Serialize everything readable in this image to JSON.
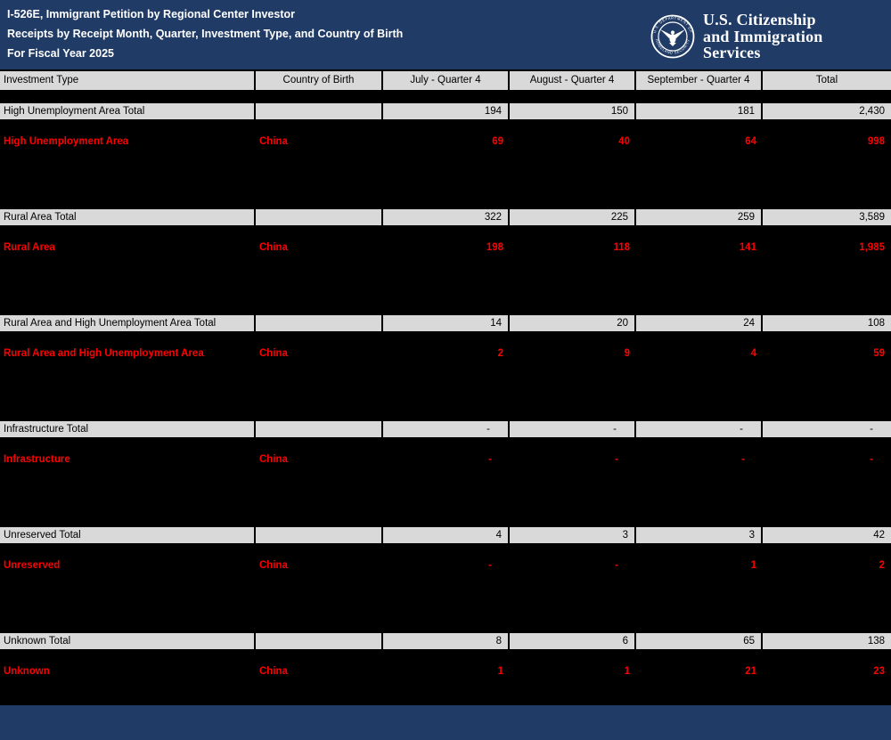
{
  "header": {
    "title_line1": "I-526E, Immigrant Petition by Regional Center Investor",
    "title_line2": "Receipts by Receipt Month, Quarter, Investment Type, and Country of Birth",
    "title_line3": "For Fiscal Year 2025",
    "seal_text_top": "U.S. DEPARTMENT OF",
    "seal_text_bottom": "HOMELAND SECURITY",
    "wordmark_line1": "U.S. Citizenship",
    "wordmark_line2": "and Immigration",
    "wordmark_line3": "Services"
  },
  "colors": {
    "banner_navy": "#1f3b66",
    "cell_gray": "#d9d9d9",
    "highlight_red": "#ff0000",
    "background_black": "#000000",
    "text_white": "#ffffff"
  },
  "table": {
    "columns": [
      "Investment Type",
      "Country of Birth",
      "July - Quarter 4",
      "August - Quarter 4",
      "September - Quarter 4",
      "Total"
    ],
    "sections": [
      {
        "total": {
          "label": "High Unemployment Area Total",
          "country": "",
          "values": [
            "194",
            "150",
            "181",
            "2,430"
          ]
        },
        "china": {
          "label": "High Unemployment Area",
          "country": "China",
          "values": [
            "69",
            "40",
            "64",
            "998"
          ]
        }
      },
      {
        "total": {
          "label": "Rural Area Total",
          "country": "",
          "values": [
            "322",
            "225",
            "259",
            "3,589"
          ]
        },
        "china": {
          "label": "Rural Area",
          "country": "China",
          "values": [
            "198",
            "118",
            "141",
            "1,985"
          ]
        }
      },
      {
        "total": {
          "label": "Rural Area and High Unemployment Area Total",
          "country": "",
          "values": [
            "14",
            "20",
            "24",
            "108"
          ]
        },
        "china": {
          "label": "Rural Area and High Unemployment Area",
          "country": "China",
          "values": [
            "2",
            "9",
            "4",
            "59"
          ]
        }
      },
      {
        "total": {
          "label": "Infrastructure Total",
          "country": "",
          "values": [
            "-",
            "-",
            "-",
            "-"
          ]
        },
        "china": {
          "label": "Infrastructure",
          "country": "China",
          "values": [
            "-",
            "-",
            "-",
            "-"
          ]
        }
      },
      {
        "total": {
          "label": "Unreserved Total",
          "country": "",
          "values": [
            "4",
            "3",
            "3",
            "42"
          ]
        },
        "china": {
          "label": "Unreserved",
          "country": "China",
          "values": [
            "-",
            "-",
            "1",
            "2"
          ]
        }
      },
      {
        "total": {
          "label": "Unknown Total",
          "country": "",
          "values": [
            "8",
            "6",
            "65",
            "138"
          ]
        },
        "china": {
          "label": "Unknown",
          "country": "China",
          "values": [
            "1",
            "1",
            "21",
            "23"
          ]
        }
      }
    ]
  }
}
